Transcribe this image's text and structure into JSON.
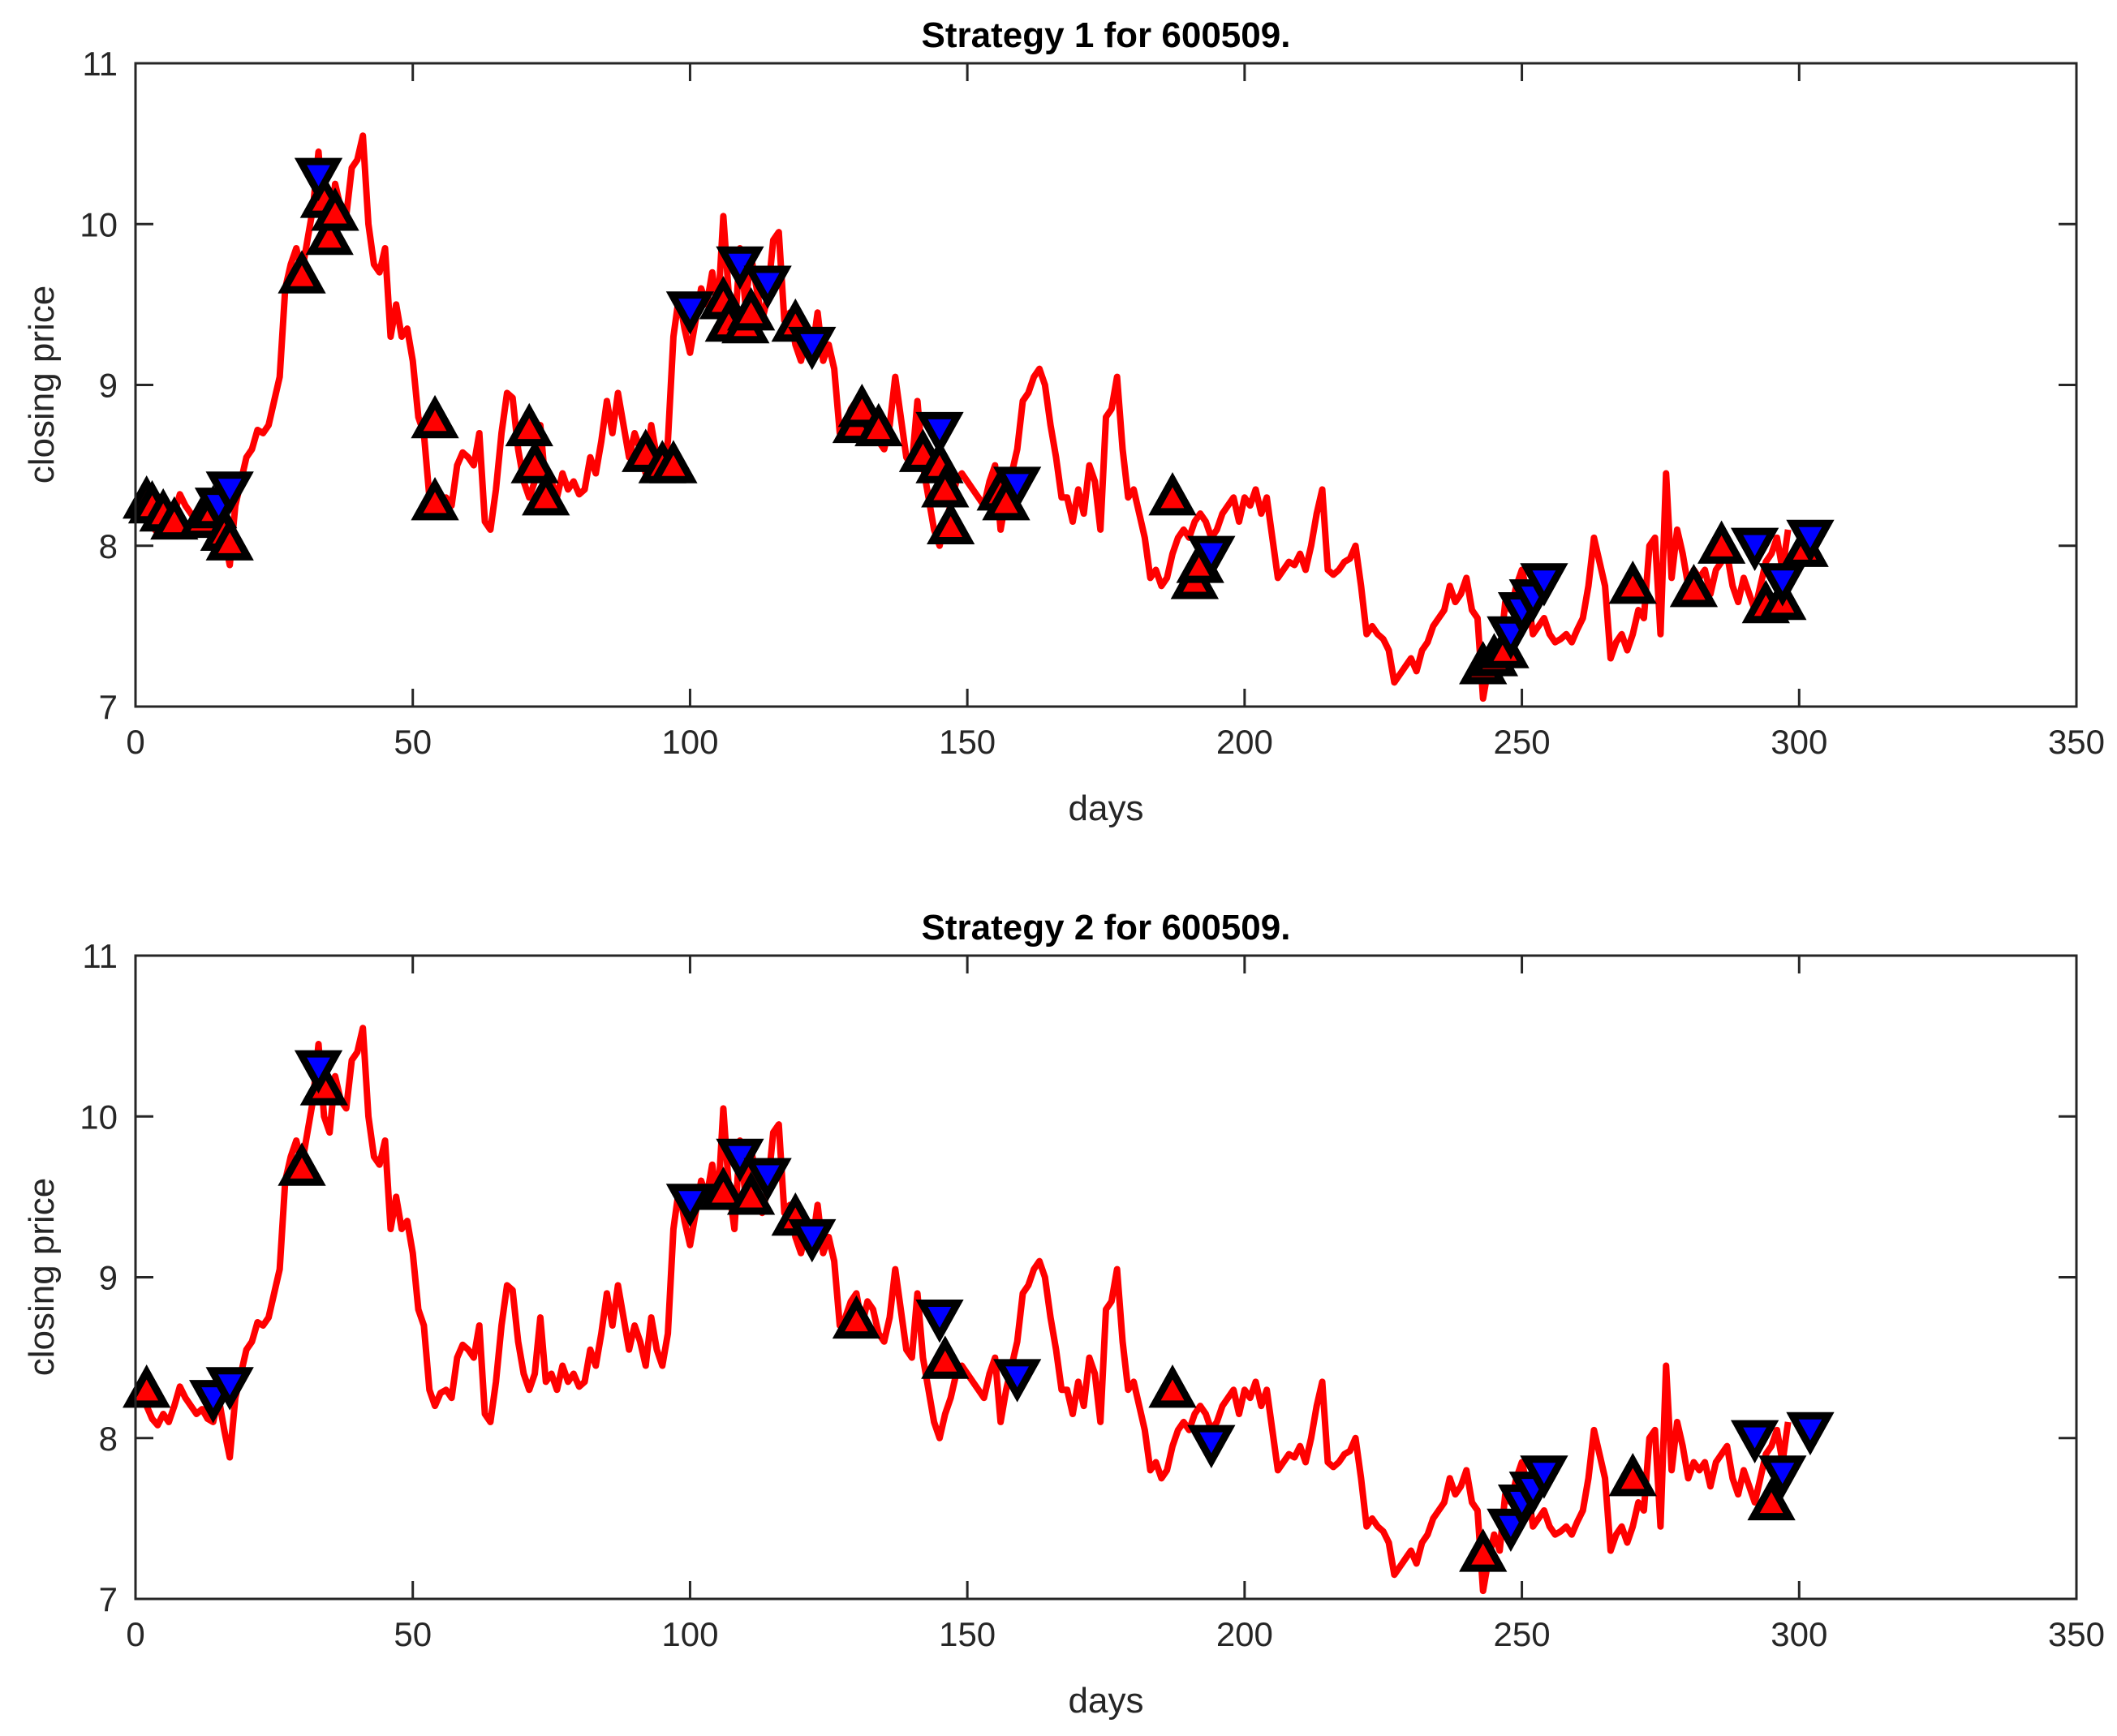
{
  "colors": {
    "price_line": "#ff0000",
    "buy_fill": "#ff0000",
    "sell_fill": "#0000ff",
    "marker_edge": "#000000",
    "axes": "#262626"
  },
  "chart_data": [
    {
      "type": "line",
      "title": "Strategy 1 for 600509.",
      "xlabel": "days",
      "ylabel": "closing price",
      "xlim": [
        0,
        350
      ],
      "ylim": [
        7,
        11
      ],
      "xticks": [
        "0",
        "50",
        "100",
        "150",
        "200",
        "250",
        "300",
        "350"
      ],
      "yticks": [
        "7",
        "8",
        "9",
        "10",
        "11"
      ],
      "price_series": "shared_price",
      "buy_points": [
        [
          2,
          8.28
        ],
        [
          3,
          8.25
        ],
        [
          5,
          8.2
        ],
        [
          7,
          8.15
        ],
        [
          12,
          8.16
        ],
        [
          14,
          8.22
        ],
        [
          16,
          8.08
        ],
        [
          17,
          8.02
        ],
        [
          30,
          9.68
        ],
        [
          34,
          10.15
        ],
        [
          35,
          9.92
        ],
        [
          36,
          10.07
        ],
        [
          54,
          8.78
        ],
        [
          54,
          8.27
        ],
        [
          71,
          8.73
        ],
        [
          72,
          8.5
        ],
        [
          74,
          8.3
        ],
        [
          92,
          8.57
        ],
        [
          95,
          8.5
        ],
        [
          97,
          8.5
        ],
        [
          106,
          9.52
        ],
        [
          107,
          9.38
        ],
        [
          110,
          9.37
        ],
        [
          111,
          9.45
        ],
        [
          119,
          9.38
        ],
        [
          130,
          8.75
        ],
        [
          131,
          8.85
        ],
        [
          134,
          8.73
        ],
        [
          142,
          8.57
        ],
        [
          145,
          8.5
        ],
        [
          146,
          8.35
        ],
        [
          147,
          8.12
        ],
        [
          156,
          8.33
        ],
        [
          157,
          8.27
        ],
        [
          187,
          8.3
        ],
        [
          191,
          7.78
        ],
        [
          192,
          7.88
        ],
        [
          243,
          7.25
        ],
        [
          245,
          7.3
        ],
        [
          247,
          7.35
        ],
        [
          270,
          7.75
        ],
        [
          281,
          7.73
        ],
        [
          286,
          8.0
        ],
        [
          294,
          7.63
        ],
        [
          297,
          7.65
        ],
        [
          301,
          7.98
        ]
      ],
      "sell_points": [
        [
          15,
          8.25
        ],
        [
          17,
          8.35
        ],
        [
          33,
          10.3
        ],
        [
          100,
          9.47
        ],
        [
          109,
          9.75
        ],
        [
          114,
          9.63
        ],
        [
          122,
          9.25
        ],
        [
          145,
          8.72
        ],
        [
          159,
          8.38
        ],
        [
          194,
          7.95
        ],
        [
          248,
          7.45
        ],
        [
          250,
          7.6
        ],
        [
          252,
          7.68
        ],
        [
          254,
          7.78
        ],
        [
          292,
          8.0
        ],
        [
          297,
          7.78
        ],
        [
          302,
          8.05
        ]
      ]
    },
    {
      "type": "line",
      "title": "Strategy 2 for 600509.",
      "xlabel": "days",
      "ylabel": "closing price",
      "xlim": [
        0,
        350
      ],
      "ylim": [
        7,
        11
      ],
      "xticks": [
        "0",
        "50",
        "100",
        "150",
        "200",
        "250",
        "300",
        "350"
      ],
      "yticks": [
        "7",
        "8",
        "9",
        "10",
        "11"
      ],
      "price_series": "shared_price",
      "buy_points": [
        [
          2,
          8.3
        ],
        [
          34,
          10.18
        ],
        [
          30,
          9.68
        ],
        [
          106,
          9.53
        ],
        [
          111,
          9.5
        ],
        [
          119,
          9.37
        ],
        [
          130,
          8.73
        ],
        [
          146,
          8.48
        ],
        [
          187,
          8.3
        ],
        [
          243,
          7.28
        ],
        [
          270,
          7.75
        ],
        [
          295,
          7.6
        ]
      ],
      "sell_points": [
        [
          14,
          8.25
        ],
        [
          17,
          8.33
        ],
        [
          33,
          10.3
        ],
        [
          100,
          9.47
        ],
        [
          109,
          9.75
        ],
        [
          114,
          9.63
        ],
        [
          122,
          9.25
        ],
        [
          145,
          8.75
        ],
        [
          159,
          8.38
        ],
        [
          194,
          7.97
        ],
        [
          248,
          7.45
        ],
        [
          250,
          7.6
        ],
        [
          252,
          7.68
        ],
        [
          254,
          7.78
        ],
        [
          292,
          8.0
        ],
        [
          297,
          7.78
        ],
        [
          302,
          8.05
        ]
      ]
    }
  ],
  "shared_price": [
    8.22,
    8.28,
    8.2,
    8.12,
    8.08,
    8.15,
    8.1,
    8.2,
    8.32,
    8.25,
    8.2,
    8.15,
    8.18,
    8.12,
    8.1,
    8.25,
    8.05,
    7.88,
    8.25,
    8.4,
    8.55,
    8.6,
    8.72,
    8.7,
    8.75,
    8.9,
    9.05,
    9.6,
    9.75,
    9.85,
    9.7,
    9.9,
    10.1,
    10.45,
    10.0,
    9.9,
    10.25,
    10.1,
    10.05,
    10.35,
    10.4,
    10.55,
    10.0,
    9.75,
    9.7,
    9.85,
    9.3,
    9.5,
    9.3,
    9.35,
    9.15,
    8.8,
    8.7,
    8.3,
    8.2,
    8.28,
    8.3,
    8.25,
    8.5,
    8.58,
    8.55,
    8.5,
    8.7,
    8.15,
    8.1,
    8.35,
    8.7,
    8.95,
    8.92,
    8.6,
    8.4,
    8.3,
    8.4,
    8.75,
    8.35,
    8.4,
    8.3,
    8.45,
    8.35,
    8.4,
    8.32,
    8.35,
    8.55,
    8.45,
    8.65,
    8.9,
    8.7,
    8.95,
    8.75,
    8.55,
    8.7,
    8.6,
    8.45,
    8.75,
    8.55,
    8.45,
    8.65,
    9.3,
    9.55,
    9.35,
    9.2,
    9.4,
    9.6,
    9.5,
    9.7,
    9.45,
    10.05,
    9.55,
    9.3,
    9.85,
    9.5,
    9.8,
    9.6,
    9.4,
    9.55,
    9.9,
    9.95,
    9.4,
    9.45,
    9.25,
    9.15,
    9.3,
    9.2,
    9.45,
    9.15,
    9.25,
    9.1,
    8.7,
    8.75,
    8.85,
    8.9,
    8.7,
    8.85,
    8.8,
    8.65,
    8.6,
    8.75,
    9.05,
    8.8,
    8.55,
    8.5,
    8.9,
    8.5,
    8.3,
    8.1,
    8.0,
    8.15,
    8.25,
    8.4,
    8.45,
    8.4,
    8.35,
    8.3,
    8.25,
    8.4,
    8.5,
    8.1,
    8.3,
    8.45,
    8.6,
    8.9,
    8.95,
    9.05,
    9.1,
    9.0,
    8.75,
    8.55,
    8.3,
    8.3,
    8.15,
    8.35,
    8.2,
    8.5,
    8.4,
    8.1,
    8.8,
    8.85,
    9.05,
    8.6,
    8.3,
    8.35,
    8.2,
    8.05,
    7.8,
    7.85,
    7.75,
    7.8,
    7.95,
    8.05,
    8.1,
    8.05,
    8.15,
    8.2,
    8.15,
    8.05,
    8.1,
    8.2,
    8.25,
    8.3,
    8.15,
    8.3,
    8.25,
    8.35,
    8.2,
    8.3,
    8.05,
    7.8,
    7.85,
    7.9,
    7.88,
    7.95,
    7.85,
    8.0,
    8.2,
    8.35,
    7.85,
    7.82,
    7.85,
    7.9,
    7.92,
    8.0,
    7.75,
    7.45,
    7.5,
    7.45,
    7.42,
    7.35,
    7.15,
    7.2,
    7.25,
    7.3,
    7.22,
    7.35,
    7.4,
    7.5,
    7.55,
    7.6,
    7.75,
    7.65,
    7.7,
    7.8,
    7.6,
    7.55,
    7.05,
    7.25,
    7.4,
    7.3,
    7.65,
    7.6,
    7.75,
    7.85,
    7.7,
    7.45,
    7.5,
    7.55,
    7.45,
    7.4,
    7.42,
    7.45,
    7.4,
    7.48,
    7.55,
    7.75,
    8.05,
    7.9,
    7.75,
    7.3,
    7.4,
    7.45,
    7.35,
    7.45,
    7.6,
    7.55,
    8.0,
    8.05,
    7.45,
    8.45,
    7.8,
    8.1,
    7.95,
    7.75,
    7.85,
    7.8,
    7.85,
    7.7,
    7.85,
    7.9,
    7.95,
    7.75,
    7.65,
    7.8,
    7.7,
    7.6,
    7.75,
    7.9,
    7.95,
    8.05,
    7.85,
    8.1
  ]
}
